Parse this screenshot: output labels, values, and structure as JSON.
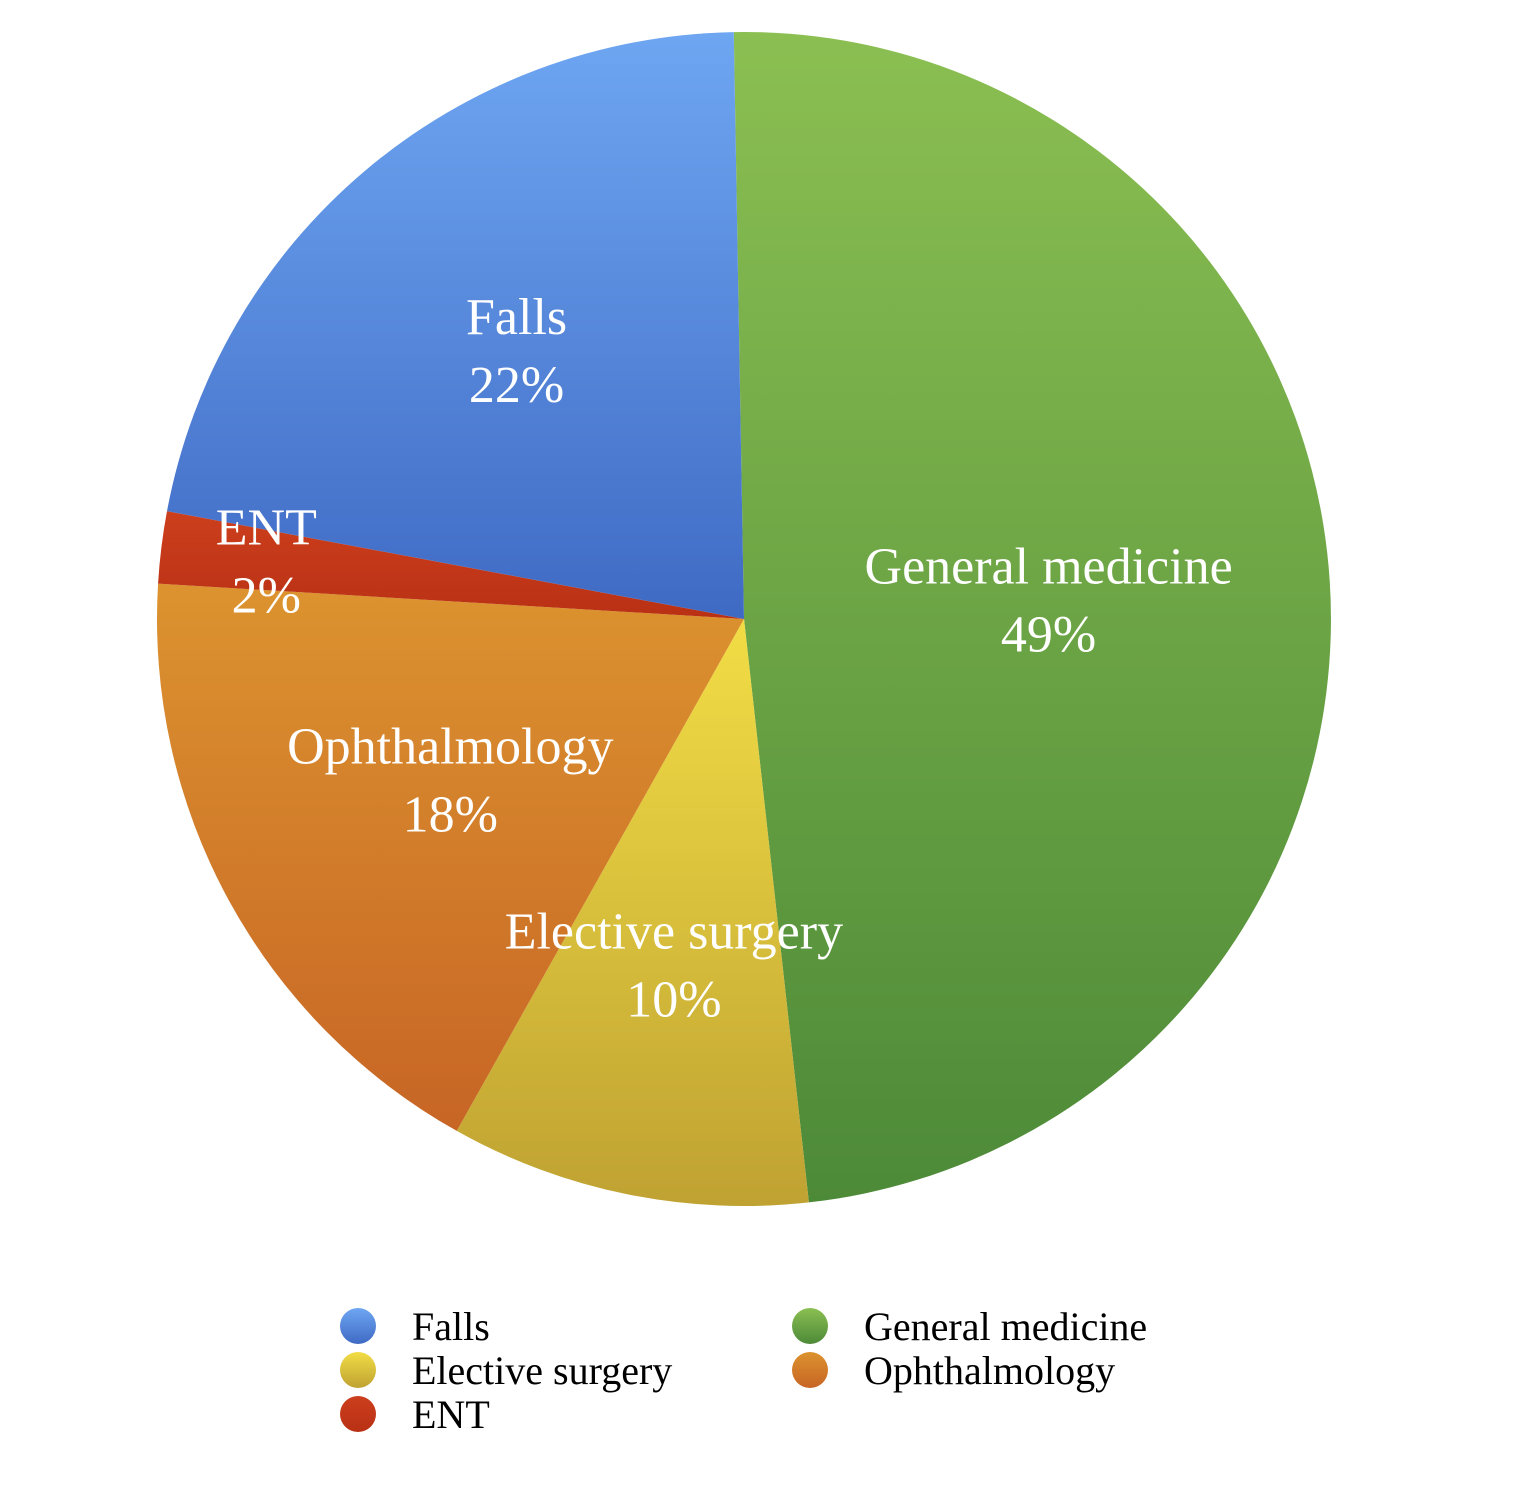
{
  "chart_data": {
    "type": "pie",
    "title": "",
    "start_angle_deg": -1,
    "slices": [
      {
        "label": "General medicine",
        "value": 49,
        "display": "49%",
        "color": "#6aa545",
        "color_light": "#8bbf52",
        "color_dark": "#4d8a38",
        "legend_col": 1,
        "legend_row": 0
      },
      {
        "label": "Elective surgery",
        "value": 10,
        "display": "10%",
        "color": "#d8bc3b",
        "color_light": "#f2dd45",
        "color_dark": "#bfa232",
        "legend_col": 0,
        "legend_row": 1
      },
      {
        "label": "Ophthalmology",
        "value": 18,
        "display": "18%",
        "color": "#d2802c",
        "color_light": "#dc932f",
        "color_dark": "#c76525",
        "legend_col": 1,
        "legend_row": 1
      },
      {
        "label": "ENT",
        "value": 2,
        "display": "2%",
        "color": "#c43a17",
        "color_light": "#cc3f1d",
        "color_dark": "#b93014",
        "legend_col": 0,
        "legend_row": 2
      },
      {
        "label": "Falls",
        "value": 22,
        "display": "22%",
        "color": "#5b8ee0",
        "color_light": "#6ea6f2",
        "color_dark": "#3f6ac4",
        "legend_col": 0,
        "legend_row": 0
      }
    ],
    "legend": {
      "position": "bottom",
      "columns": 2
    }
  }
}
